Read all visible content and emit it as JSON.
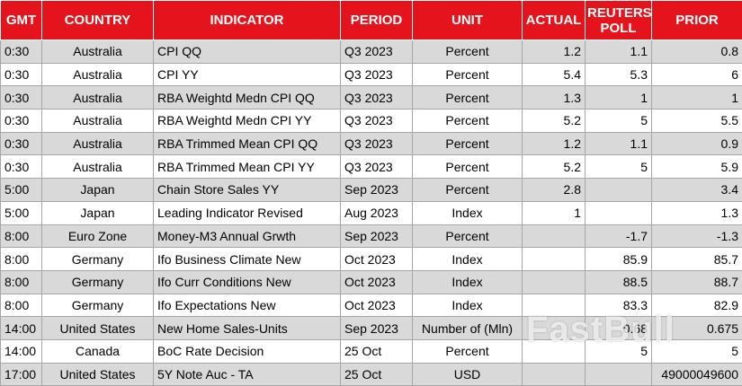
{
  "table": {
    "header": [
      "GMT",
      "COUNTRY",
      "INDICATOR",
      "PERIOD",
      "UNIT",
      "ACTUAL",
      "REUTERS POLL",
      "PRIOR"
    ],
    "rows": [
      [
        "0:30",
        "Australia",
        "CPI QQ",
        "Q3 2023",
        "Percent",
        "1.2",
        "1.1",
        "0.8"
      ],
      [
        "0:30",
        "Australia",
        "CPI YY",
        "Q3 2023",
        "Percent",
        "5.4",
        "5.3",
        "6"
      ],
      [
        "0:30",
        "Australia",
        "RBA Weightd Medn CPI QQ",
        "Q3 2023",
        "Percent",
        "1.3",
        "1",
        "1"
      ],
      [
        "0:30",
        "Australia",
        "RBA Weightd Medn CPI YY",
        "Q3 2023",
        "Percent",
        "5.2",
        "5",
        "5.5"
      ],
      [
        "0:30",
        "Australia",
        "RBA Trimmed Mean CPI QQ",
        "Q3 2023",
        "Percent",
        "1.2",
        "1.1",
        "0.9"
      ],
      [
        "0:30",
        "Australia",
        "RBA Trimmed Mean CPI YY",
        "Q3 2023",
        "Percent",
        "5.2",
        "5",
        "5.9"
      ],
      [
        "5:00",
        "Japan",
        "Chain Store Sales YY",
        "Sep 2023",
        "Percent",
        "2.8",
        null,
        "3.4"
      ],
      [
        "5:00",
        "Japan",
        "Leading Indicator Revised",
        "Aug 2023",
        "Index",
        "1",
        null,
        "1.3"
      ],
      [
        "8:00",
        "Euro Zone",
        "Money-M3 Annual Grwth",
        "Sep 2023",
        "Percent",
        null,
        "-1.7",
        "-1.3"
      ],
      [
        "8:00",
        "Germany",
        "Ifo Business Climate New",
        "Oct 2023",
        "Index",
        null,
        "85.9",
        "85.7"
      ],
      [
        "8:00",
        "Germany",
        "Ifo Curr Conditions New",
        "Oct 2023",
        "Index",
        null,
        "88.5",
        "88.7"
      ],
      [
        "8:00",
        "Germany",
        "Ifo Expectations New",
        "Oct 2023",
        "Index",
        null,
        "83.3",
        "82.9"
      ],
      [
        "14:00",
        "United States",
        "New Home Sales-Units",
        "Sep 2023",
        "Number of (Mln)",
        null,
        "0.68",
        "0.675"
      ],
      [
        "14:00",
        "Canada",
        "BoC Rate Decision",
        "25 Oct",
        "Percent",
        null,
        "5",
        "5"
      ],
      [
        "17:00",
        "United States",
        "5Y Note Auc - TA",
        "25 Oct",
        "USD",
        null,
        null,
        "49000049600"
      ]
    ]
  },
  "watermark": "FastBull"
}
